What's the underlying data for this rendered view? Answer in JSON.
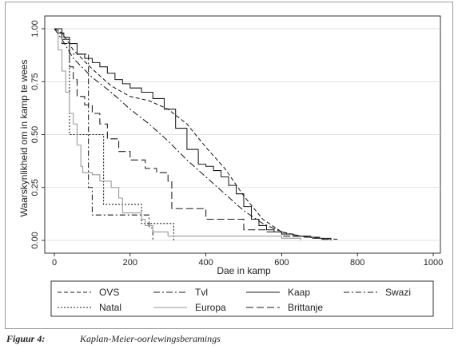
{
  "caption": {
    "label": "Figuur 4:",
    "text": "Kaplan-Meier-oorlewingsberamings"
  },
  "colors": {
    "line": "#1a1a1a",
    "europa": "#9a9a9a",
    "grid": "#d8d8d8",
    "frame": "#9a9a9a"
  },
  "chart_data": {
    "type": "line",
    "title": "",
    "xlabel": "Dae in kamp",
    "ylabel": "Waarskynlikheid om in kamp te wees",
    "xlim": [
      0,
      1000
    ],
    "ylim": [
      0,
      1
    ],
    "xticks": [
      0,
      200,
      400,
      600,
      800,
      1000
    ],
    "yticks": [
      0.0,
      0.25,
      0.5,
      0.75,
      1.0
    ],
    "xtick_labels": [
      "0",
      "200",
      "400",
      "600",
      "800",
      "1000"
    ],
    "ytick_labels": [
      "0.00",
      "0.25",
      "0.50",
      "0.75",
      "1.00"
    ],
    "grid": true,
    "legend_position": "bottom",
    "series": [
      {
        "name": "OVS",
        "dash": "5,3",
        "color": "#1a1a1a",
        "step": false,
        "x": [
          0,
          20,
          50,
          100,
          150,
          200,
          250,
          300,
          350,
          400,
          450,
          500,
          550,
          600,
          650,
          700,
          750
        ],
        "y": [
          1.0,
          0.98,
          0.9,
          0.81,
          0.73,
          0.68,
          0.66,
          0.62,
          0.55,
          0.44,
          0.34,
          0.21,
          0.1,
          0.04,
          0.02,
          0.01,
          0.005
        ]
      },
      {
        "name": "Tvl",
        "dash": "8,3,2,3",
        "color": "#1a1a1a",
        "step": false,
        "x": [
          0,
          20,
          50,
          100,
          150,
          200,
          250,
          300,
          350,
          400,
          450,
          500,
          550,
          600,
          650,
          700
        ],
        "y": [
          1.0,
          0.95,
          0.86,
          0.77,
          0.7,
          0.62,
          0.55,
          0.47,
          0.38,
          0.3,
          0.22,
          0.14,
          0.08,
          0.04,
          0.02,
          0.01
        ]
      },
      {
        "name": "Kaap",
        "dash": "",
        "color": "#1a1a1a",
        "step": true,
        "x": [
          0,
          10,
          25,
          40,
          60,
          80,
          100,
          120,
          140,
          160,
          180,
          200,
          230,
          260,
          290,
          320,
          350,
          380,
          400,
          420,
          440,
          460,
          480,
          500,
          520,
          540,
          560,
          580,
          600,
          630,
          660,
          700,
          730
        ],
        "y": [
          1.0,
          0.98,
          0.96,
          0.93,
          0.88,
          0.86,
          0.84,
          0.82,
          0.79,
          0.76,
          0.74,
          0.72,
          0.7,
          0.67,
          0.62,
          0.53,
          0.43,
          0.36,
          0.35,
          0.33,
          0.3,
          0.26,
          0.22,
          0.16,
          0.1,
          0.07,
          0.05,
          0.04,
          0.03,
          0.02,
          0.015,
          0.01,
          0.0
        ]
      },
      {
        "name": "Swazi",
        "dash": "7,3,2,3",
        "color": "#1a1a1a",
        "step": true,
        "x": [
          0,
          20,
          40,
          90,
          100,
          110,
          250,
          260
        ],
        "y": [
          1.0,
          0.95,
          0.88,
          0.25,
          0.12,
          0.12,
          0.06,
          0.0
        ]
      },
      {
        "name": "Natal",
        "dash": "2,2",
        "color": "#1a1a1a",
        "step": true,
        "x": [
          0,
          20,
          40,
          80,
          130,
          170,
          230,
          250,
          315
        ],
        "y": [
          1.0,
          0.95,
          0.5,
          0.5,
          0.17,
          0.17,
          0.08,
          0.08,
          0.0
        ]
      },
      {
        "name": "Europa",
        "dash": "",
        "color": "#9a9a9a",
        "step": true,
        "x": [
          0,
          10,
          20,
          30,
          40,
          50,
          60,
          70,
          75,
          100,
          120,
          150,
          170,
          180,
          230,
          240,
          260,
          300,
          600,
          650
        ],
        "y": [
          1.0,
          0.9,
          0.8,
          0.7,
          0.6,
          0.55,
          0.45,
          0.35,
          0.32,
          0.31,
          0.28,
          0.25,
          0.2,
          0.13,
          0.1,
          0.07,
          0.04,
          0.02,
          0.01,
          0.0
        ]
      },
      {
        "name": "Brittanje",
        "dash": "9,4",
        "color": "#1a1a1a",
        "step": true,
        "x": [
          0,
          20,
          40,
          50,
          60,
          80,
          100,
          120,
          140,
          170,
          200,
          240,
          270,
          300,
          310,
          400,
          500,
          560,
          600,
          680,
          700,
          730
        ],
        "y": [
          1.0,
          0.93,
          0.82,
          0.76,
          0.68,
          0.64,
          0.6,
          0.55,
          0.48,
          0.42,
          0.38,
          0.34,
          0.32,
          0.28,
          0.15,
          0.1,
          0.05,
          0.04,
          0.02,
          0.01,
          0.005,
          0.0
        ]
      }
    ]
  }
}
